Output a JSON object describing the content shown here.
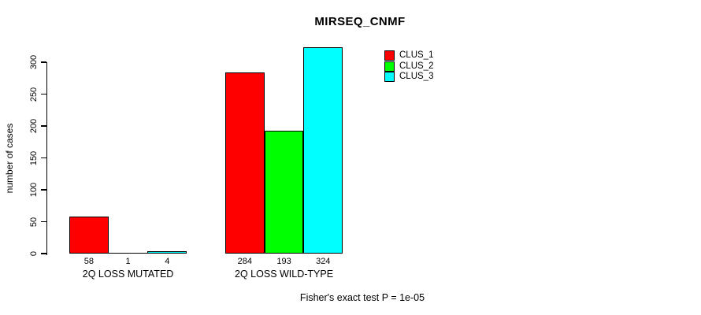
{
  "chart_data": {
    "type": "bar",
    "title": "MIRSEQ_CNMF",
    "ylabel": "number of cases",
    "xlabel": "",
    "annotation": "Fisher's exact test P = 1e-05",
    "ylim": [
      0,
      300
    ],
    "yticks": [
      0,
      50,
      100,
      150,
      200,
      250,
      300
    ],
    "grid": false,
    "legend_position": "top-right",
    "categories": [
      "2Q LOSS MUTATED",
      "2Q LOSS WILD-TYPE"
    ],
    "series": [
      {
        "name": "CLUS_1",
        "color": "#FF0000",
        "values": [
          58,
          284
        ]
      },
      {
        "name": "CLUS_2",
        "color": "#00FF00",
        "values": [
          1,
          193
        ]
      },
      {
        "name": "CLUS_3",
        "color": "#00FFFF",
        "values": [
          4,
          324
        ]
      }
    ],
    "value_labels_shown": true,
    "bar_border_color": "#000000",
    "background_color": "#FFFFFF"
  }
}
